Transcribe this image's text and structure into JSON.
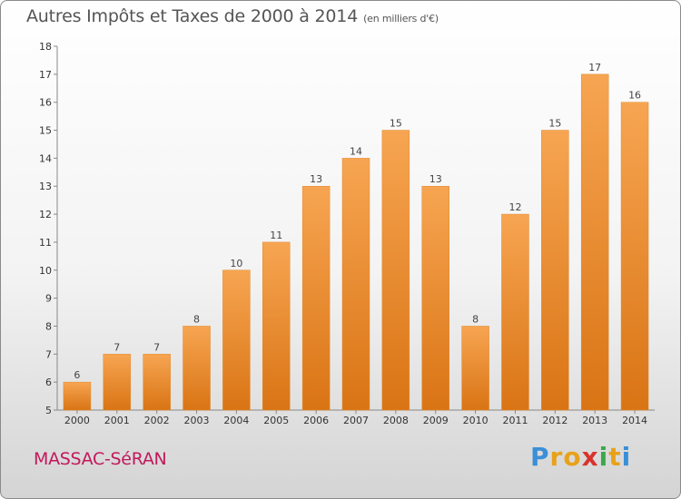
{
  "title": "Autres Impôts et Taxes de 2000 à 2014",
  "unit_label": "(en milliers d'€)",
  "commune": "MASSAC-SéRAN",
  "logo": {
    "letters": [
      "P",
      "r",
      "o",
      "x",
      "i",
      "t",
      "i"
    ],
    "colors": [
      "#3a8fd8",
      "#e8a21a",
      "#e8a21a",
      "#d8342c",
      "#3aa84a",
      "#e8a21a",
      "#3a8fd8"
    ]
  },
  "chart_data": {
    "type": "bar",
    "title": "Autres Impôts et Taxes de 2000 à 2014",
    "subtitle": "(en milliers d'€)",
    "xlabel": "",
    "ylabel": "",
    "categories": [
      "2000",
      "2001",
      "2002",
      "2003",
      "2004",
      "2005",
      "2006",
      "2007",
      "2008",
      "2009",
      "2010",
      "2011",
      "2012",
      "2013",
      "2014"
    ],
    "values": [
      6,
      7,
      7,
      8,
      10,
      11,
      13,
      14,
      15,
      13,
      8,
      12,
      15,
      17,
      16
    ],
    "ylim": [
      5,
      18
    ],
    "yticks": [
      "5",
      "6",
      "7",
      "8",
      "9",
      "10",
      "11",
      "12",
      "13",
      "14",
      "15",
      "16",
      "17",
      "18"
    ],
    "grid": false,
    "legend": "none",
    "bar_color": "#f0902a"
  }
}
